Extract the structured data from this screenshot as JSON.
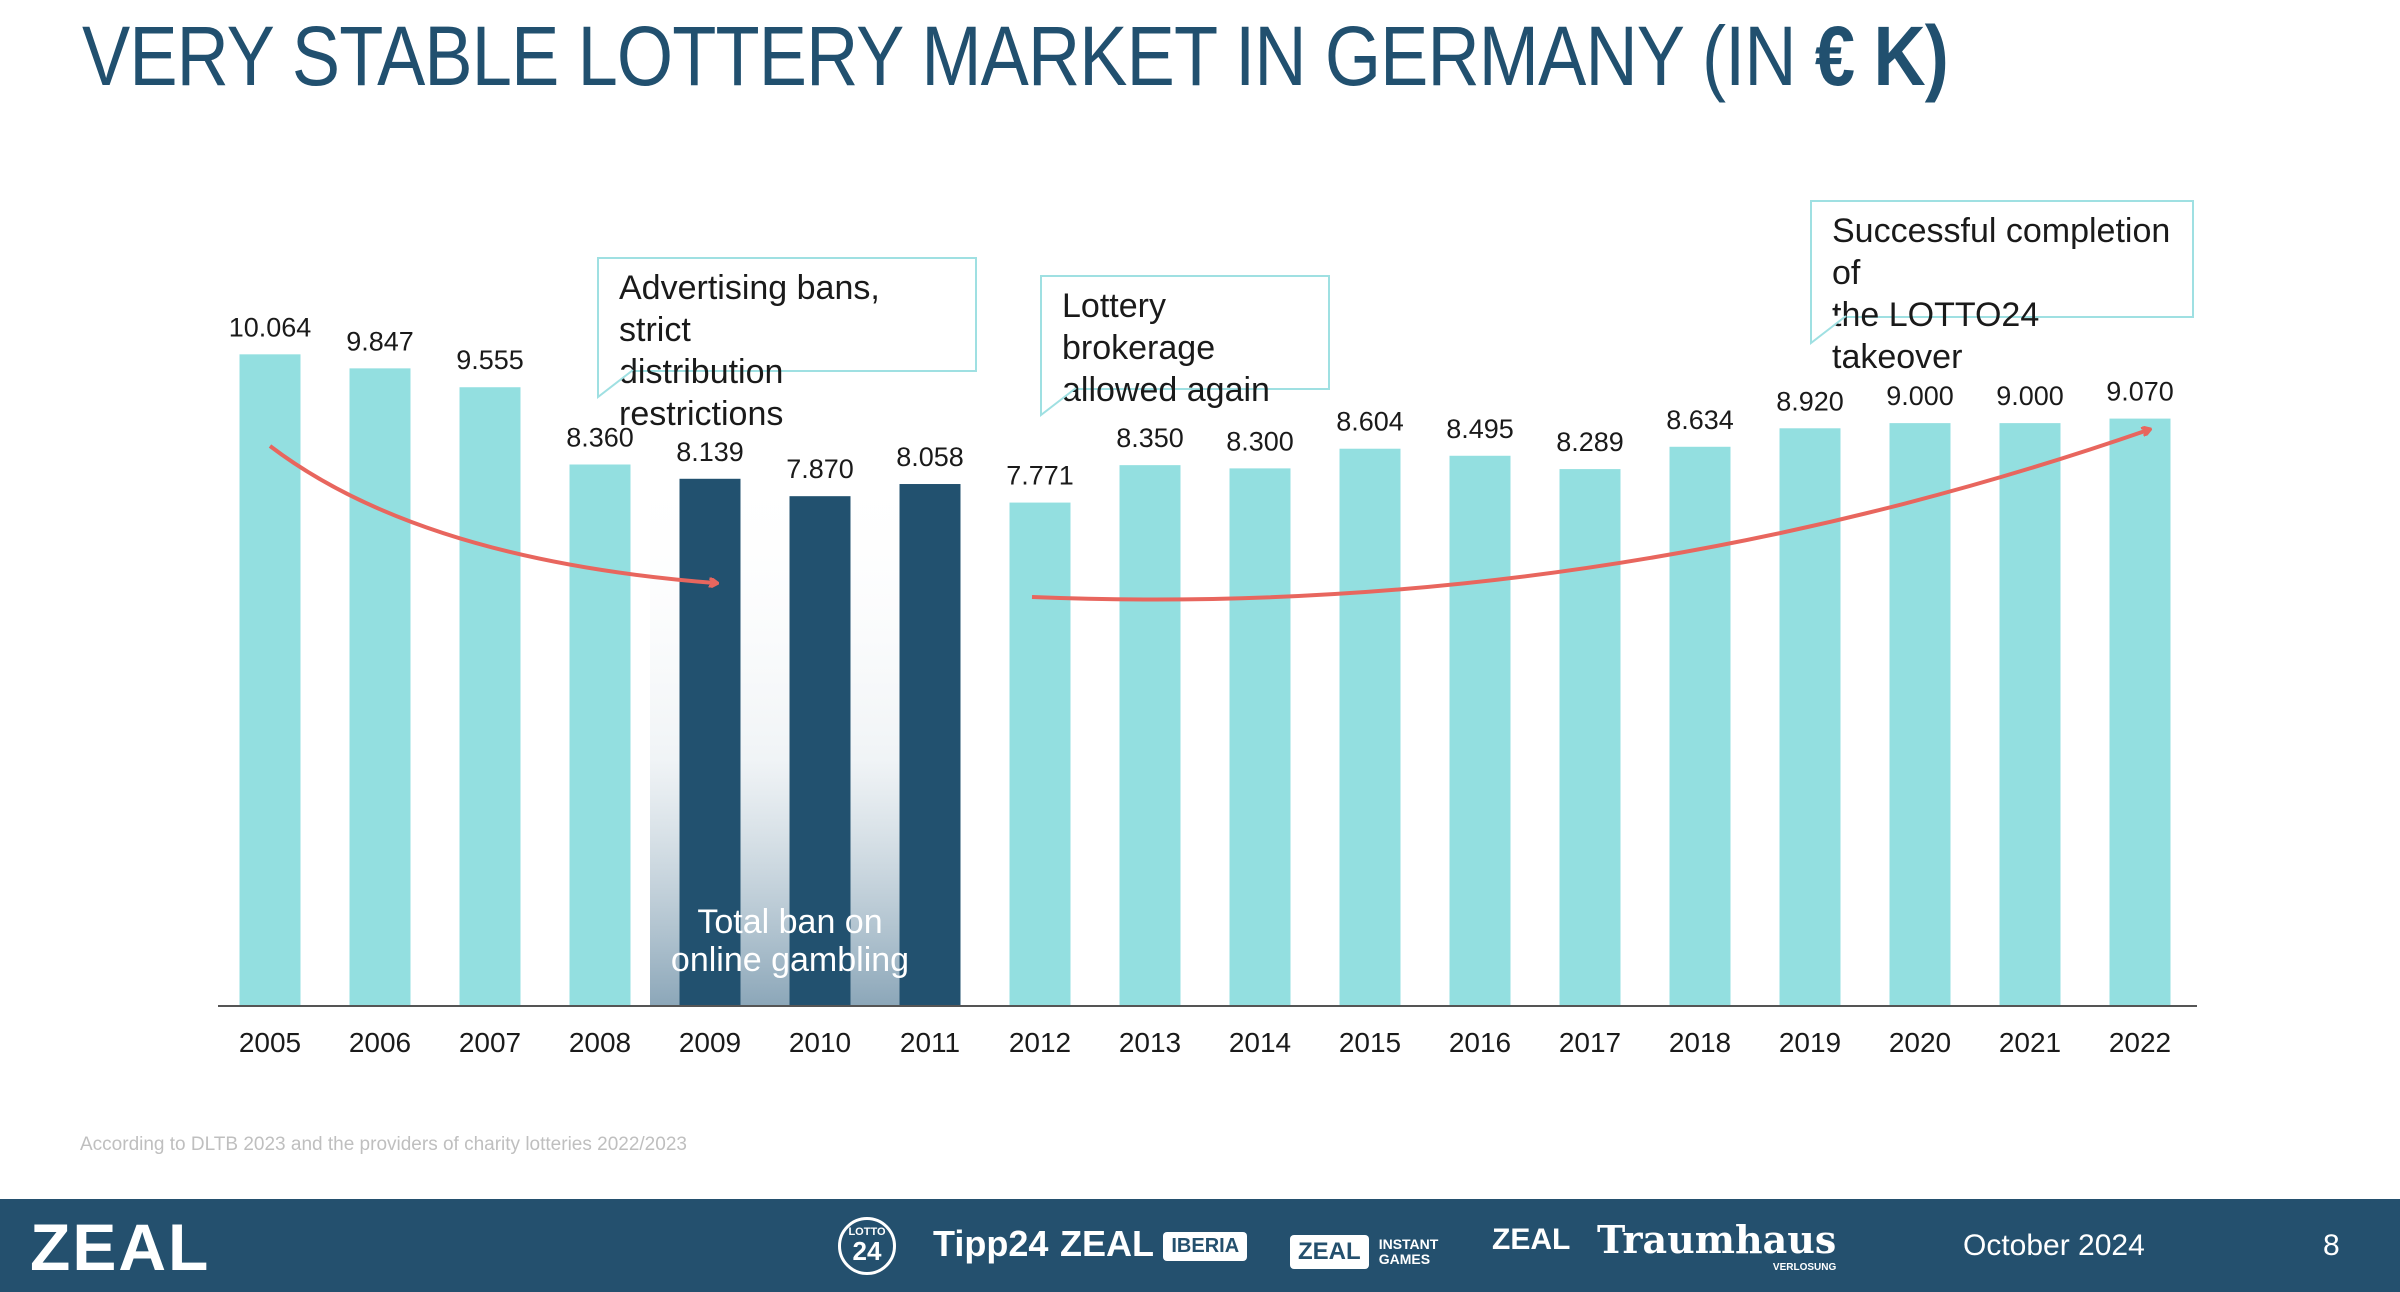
{
  "title": {
    "main": "VERY STABLE LOTTERY MARKET IN GERMANY (IN ",
    "unit": "€ K)"
  },
  "colors": {
    "bar": "#93dfe0",
    "ban_bar": "#22516f",
    "arrow": "#e8665e",
    "title": "#21506f",
    "callout_border": "#9fe0e2",
    "footer_bg": "#24506e"
  },
  "chart_data": {
    "type": "bar",
    "categories": [
      "2005",
      "2006",
      "2007",
      "2008",
      "2009",
      "2010",
      "2011",
      "2012",
      "2013",
      "2014",
      "2015",
      "2016",
      "2017",
      "2018",
      "2019",
      "2020",
      "2021",
      "2022"
    ],
    "values": [
      10.064,
      9.847,
      9.555,
      8.36,
      8.139,
      7.87,
      8.058,
      7.771,
      8.35,
      8.3,
      8.604,
      8.495,
      8.289,
      8.634,
      8.92,
      9.0,
      9.0,
      9.07
    ],
    "labels": [
      "10.064",
      "9.847",
      "9.555",
      "8.360",
      "8.139",
      "7.870",
      "8.058",
      "7.771",
      "8.350",
      "8.300",
      "8.604",
      "8.495",
      "8.289",
      "8.634",
      "8.920",
      "9.000",
      "9.000",
      "9.070"
    ],
    "highlighted": [
      "2009",
      "2010",
      "2011"
    ],
    "ylim": [
      0,
      10.1
    ],
    "xlabel": "",
    "ylabel": "",
    "annotations": {
      "ban": "Advertising bans, strict\ndistribution restrictions",
      "brokerage": "Lottery brokerage\nallowed again",
      "takeover": "Successful completion of\nthe LOTTO24 takeover",
      "total_ban": "Total ban on\nonline gambling"
    }
  },
  "footnote": "According to DLTB 2023 and the providers of charity lotteries 2022/2023",
  "footer": {
    "brand": "ZEAL",
    "logos": {
      "lotto24_top": "LOTTO",
      "lotto24_num": "24",
      "tipp24": "Tipp24",
      "zeal": "ZEAL",
      "iberia": "IBERIA",
      "instant_1": "INSTANT",
      "instant_2": "GAMES",
      "traumhaus": "Traumhaus",
      "verlosung": "VERLOSUNG"
    },
    "date": "October 2024",
    "page": "8"
  }
}
